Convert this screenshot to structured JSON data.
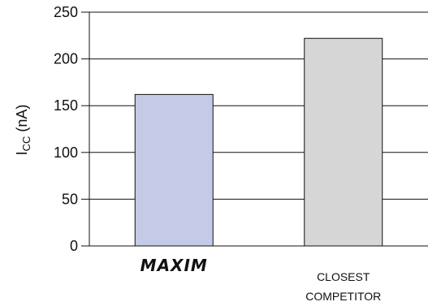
{
  "chart_data": {
    "type": "bar",
    "categories": [
      "MAXIM",
      "CLOSEST COMPETITOR"
    ],
    "category_lines": [
      [
        "MAXIM"
      ],
      [
        "CLOSEST",
        "COMPETITOR"
      ]
    ],
    "values": [
      162,
      222
    ],
    "ylabel_main": "I",
    "ylabel_sub": "CC",
    "ylabel_unit": " (nA)",
    "ylim": [
      0,
      250
    ],
    "yticks": [
      0,
      50,
      100,
      150,
      200,
      250
    ],
    "grid": true,
    "bar_colors": [
      "#c5cae6",
      "#d6d6d6"
    ],
    "bar_stroke": "#111111"
  }
}
